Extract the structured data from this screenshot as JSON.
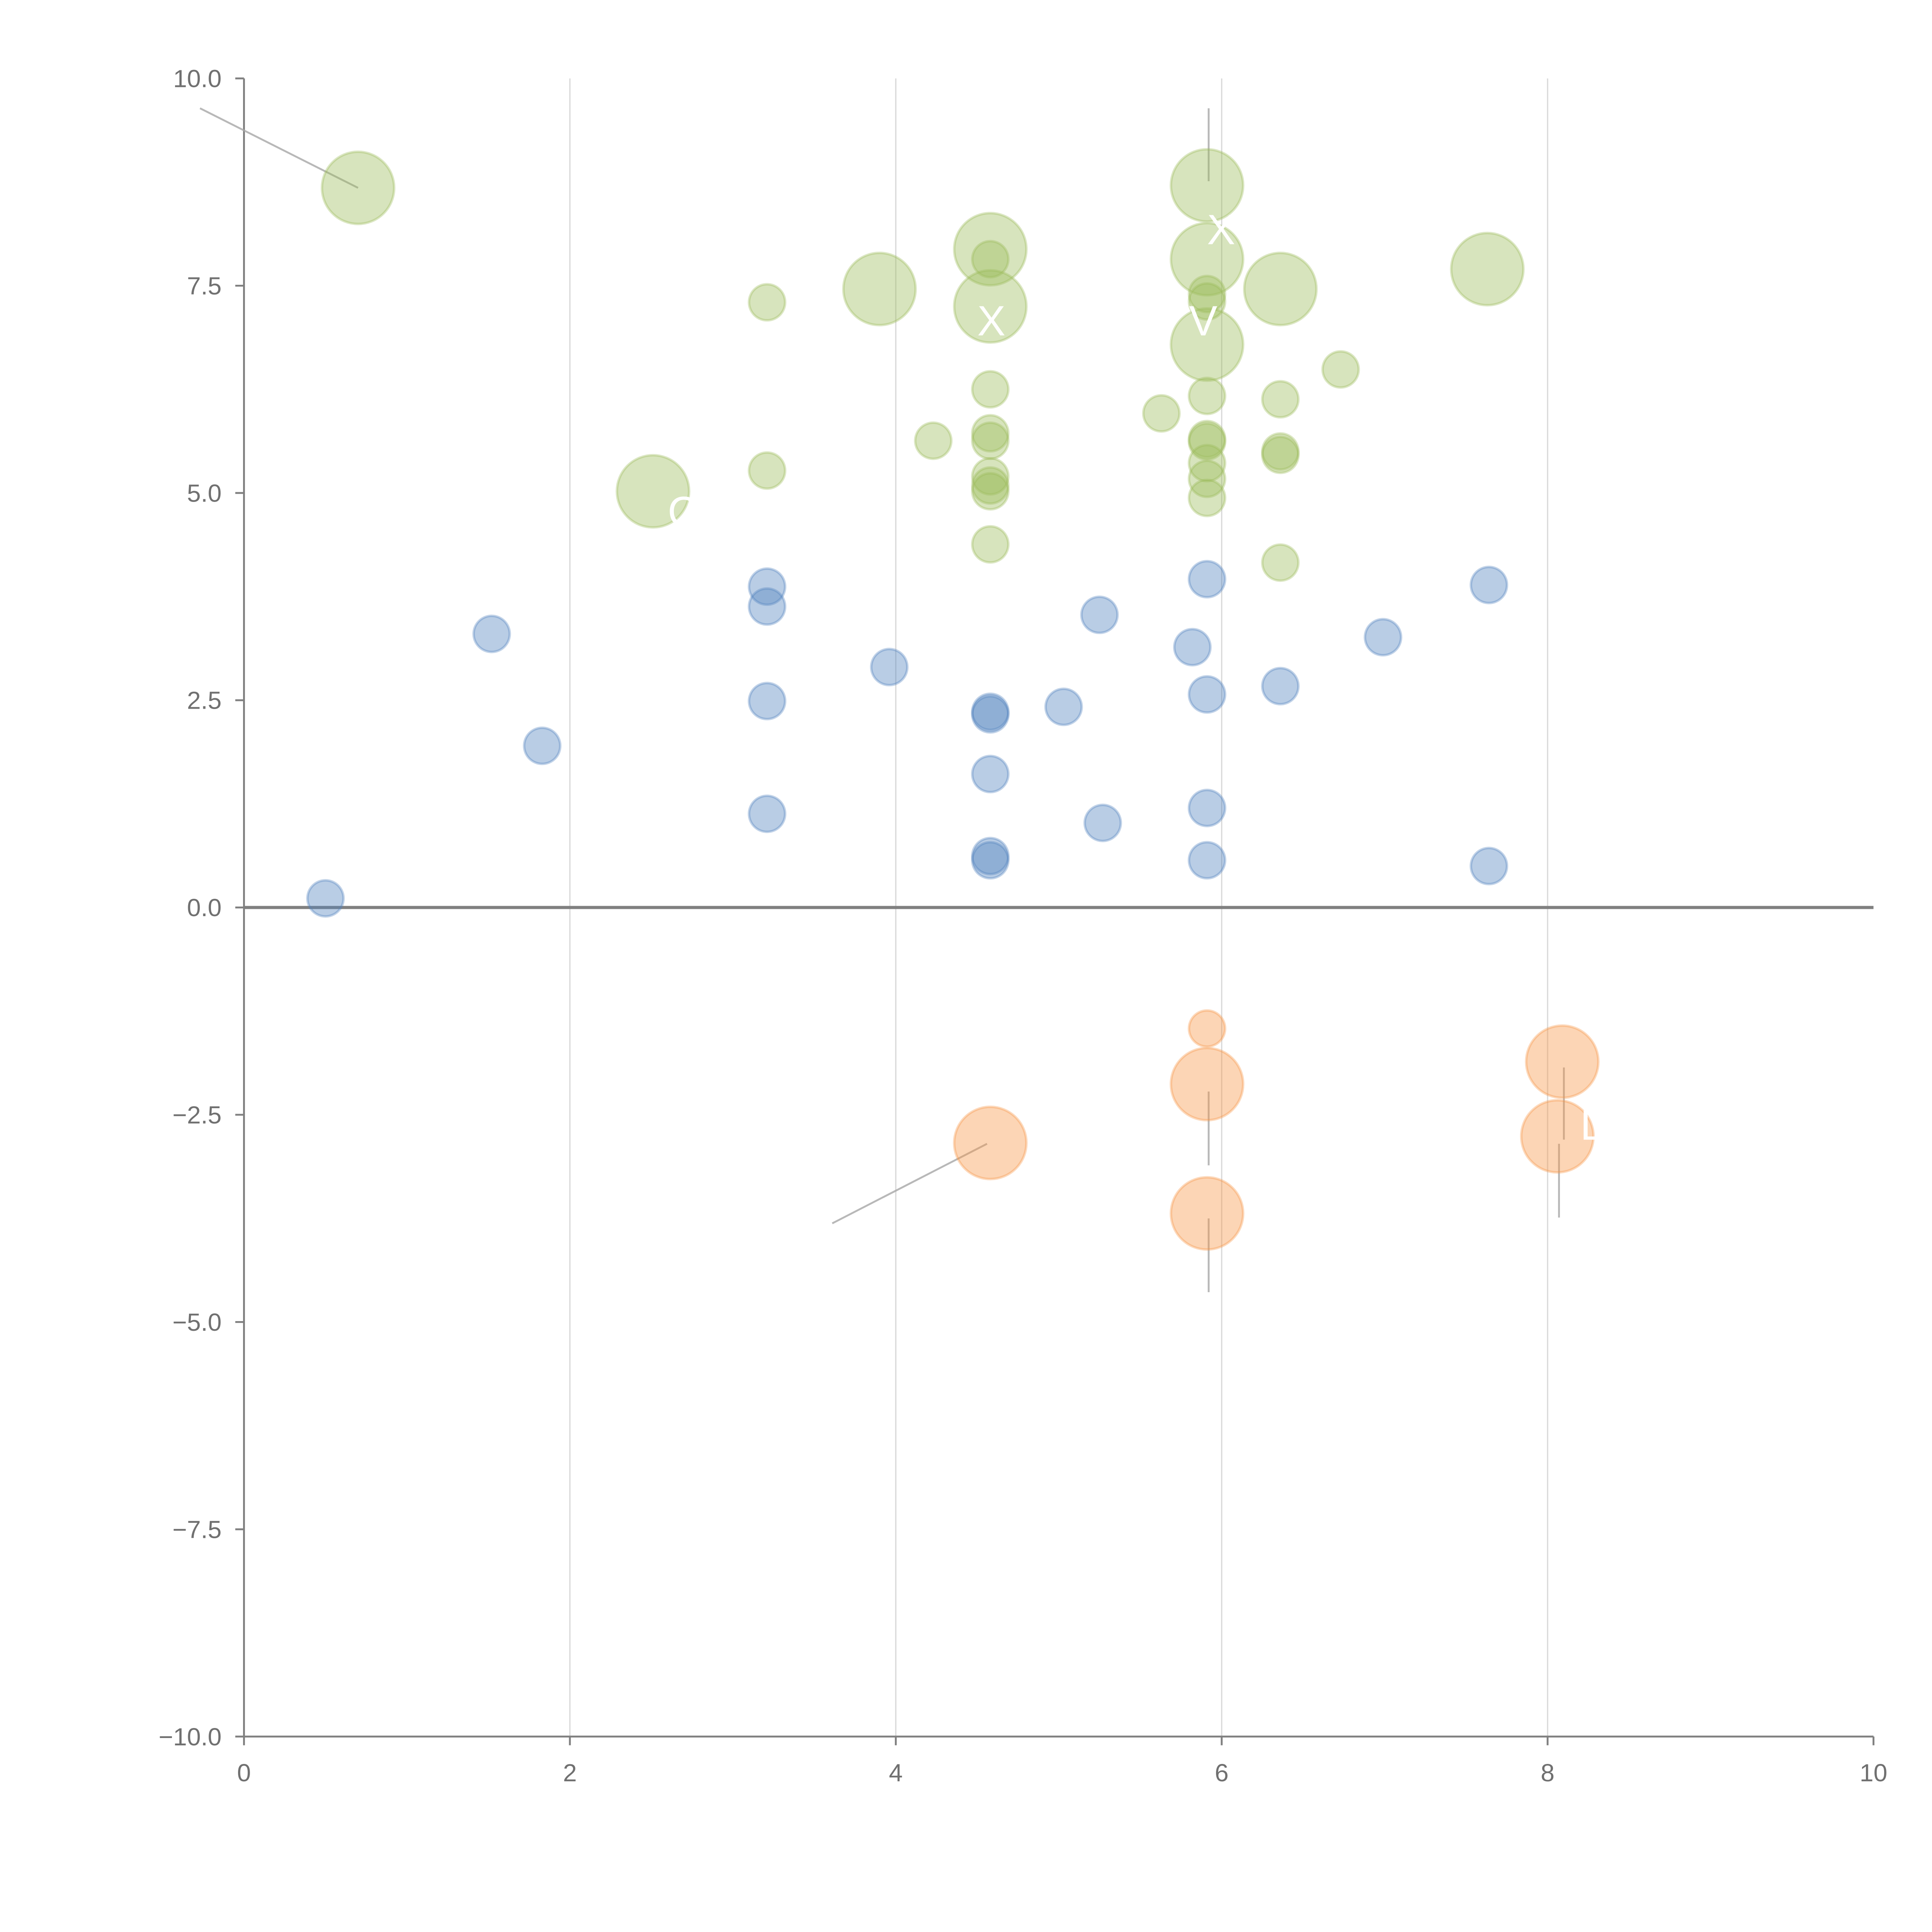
{
  "chart_data": {
    "type": "scatter",
    "title": "",
    "xlabel": "",
    "ylabel": "",
    "xlim": [
      0,
      10
    ],
    "ylim": [
      -10,
      10
    ],
    "x_ticks": [
      "0",
      "2",
      "4",
      "6",
      "8",
      "10"
    ],
    "x_tick_values": [
      0,
      2,
      4,
      6,
      8,
      10
    ],
    "y_ticks": [
      "10.0",
      "7.5",
      "5.0",
      "2.5",
      "0.0",
      "−2.5",
      "−5.0",
      "−7.5",
      "−10.0"
    ],
    "y_tick_values": [
      10,
      7.5,
      5,
      2.5,
      0,
      -2.5,
      -5,
      -7.5,
      -10
    ],
    "grid": "vertical",
    "zero_line": true,
    "series": [
      {
        "name": "green",
        "color": "#9bbb59",
        "points": [
          [
            0.7,
            8.68,
            2
          ],
          [
            5.91,
            8.71,
            2
          ],
          [
            4.58,
            7.94,
            2
          ],
          [
            4.58,
            7.82,
            1
          ],
          [
            5.91,
            7.82,
            2
          ],
          [
            7.63,
            7.7,
            2
          ],
          [
            6.36,
            7.46,
            2
          ],
          [
            3.9,
            7.46,
            2
          ],
          [
            3.21,
            7.3,
            1
          ],
          [
            4.58,
            7.25,
            2
          ],
          [
            5.91,
            7.4,
            1
          ],
          [
            5.91,
            7.31,
            1
          ],
          [
            5.91,
            6.79,
            2
          ],
          [
            6.73,
            6.49,
            1
          ],
          [
            4.58,
            6.25,
            1
          ],
          [
            5.91,
            6.17,
            1
          ],
          [
            6.36,
            6.13,
            1
          ],
          [
            5.63,
            5.96,
            1
          ],
          [
            4.58,
            5.72,
            1
          ],
          [
            4.58,
            5.63,
            1
          ],
          [
            4.23,
            5.63,
            1
          ],
          [
            5.91,
            5.65,
            1
          ],
          [
            5.91,
            5.62,
            1
          ],
          [
            6.36,
            5.5,
            1
          ],
          [
            6.36,
            5.46,
            1
          ],
          [
            5.91,
            5.36,
            1
          ],
          [
            5.91,
            5.17,
            1
          ],
          [
            5.91,
            4.94,
            1
          ],
          [
            3.21,
            5.27,
            1
          ],
          [
            2.51,
            5.02,
            2
          ],
          [
            4.58,
            5.2,
            1
          ],
          [
            4.58,
            5.09,
            1
          ],
          [
            4.58,
            5.02,
            1
          ],
          [
            4.58,
            4.38,
            1
          ],
          [
            6.36,
            4.16,
            1
          ]
        ]
      },
      {
        "name": "blue",
        "color": "#4f81bd",
        "points": [
          [
            0.5,
            0.11,
            1
          ],
          [
            1.52,
            3.3,
            1
          ],
          [
            1.83,
            1.95,
            1
          ],
          [
            3.21,
            3.87,
            1
          ],
          [
            3.21,
            3.63,
            1
          ],
          [
            3.21,
            2.49,
            1
          ],
          [
            3.21,
            1.13,
            1
          ],
          [
            3.96,
            2.9,
            1
          ],
          [
            4.58,
            2.36,
            1
          ],
          [
            4.58,
            2.33,
            1
          ],
          [
            4.58,
            1.61,
            1
          ],
          [
            4.58,
            0.62,
            1
          ],
          [
            4.58,
            0.57,
            1
          ],
          [
            5.03,
            2.42,
            1
          ],
          [
            5.25,
            3.53,
            1
          ],
          [
            5.27,
            1.02,
            1
          ],
          [
            5.82,
            3.14,
            1
          ],
          [
            5.91,
            3.96,
            1
          ],
          [
            5.91,
            2.57,
            1
          ],
          [
            5.91,
            1.2,
            1
          ],
          [
            5.91,
            0.57,
            1
          ],
          [
            6.36,
            2.67,
            1
          ],
          [
            6.99,
            3.26,
            1
          ],
          [
            7.64,
            3.89,
            1
          ],
          [
            7.64,
            0.5,
            1
          ]
        ]
      },
      {
        "name": "orange",
        "color": "#f79646",
        "points": [
          [
            5.91,
            -1.46,
            1
          ],
          [
            5.91,
            -2.13,
            2
          ],
          [
            4.58,
            -2.84,
            2
          ],
          [
            5.91,
            -3.69,
            2
          ],
          [
            8.09,
            -1.86,
            2
          ],
          [
            8.06,
            -2.76,
            2
          ]
        ]
      }
    ],
    "annotations": [
      {
        "text": "",
        "from": [
          0.7,
          8.68
        ],
        "to": [
          -0.27,
          9.64
        ]
      },
      {
        "text": "",
        "from": [
          5.92,
          8.76
        ],
        "to": [
          5.92,
          9.64
        ]
      },
      {
        "text": "X",
        "at": [
          5.91,
          8.0
        ]
      },
      {
        "text": "X",
        "at": [
          4.5,
          6.9
        ]
      },
      {
        "text": "V",
        "at": [
          5.8,
          6.9
        ]
      },
      {
        "text": "C",
        "at": [
          2.6,
          4.6
        ]
      },
      {
        "text": "",
        "from": [
          4.56,
          -2.85
        ],
        "to": [
          3.61,
          -3.81
        ]
      },
      {
        "text": "",
        "from": [
          5.92,
          -2.22
        ],
        "to": [
          5.92,
          -3.11
        ]
      },
      {
        "text": "",
        "from": [
          5.92,
          -3.75
        ],
        "to": [
          5.92,
          -4.64
        ]
      },
      {
        "text": "",
        "from": [
          8.1,
          -1.93
        ],
        "to": [
          8.1,
          -2.8
        ]
      },
      {
        "text": "",
        "from": [
          8.07,
          -2.85
        ],
        "to": [
          8.07,
          -3.74
        ]
      },
      {
        "text": "D",
        "at": [
          8.2,
          -2.8
        ]
      }
    ]
  }
}
